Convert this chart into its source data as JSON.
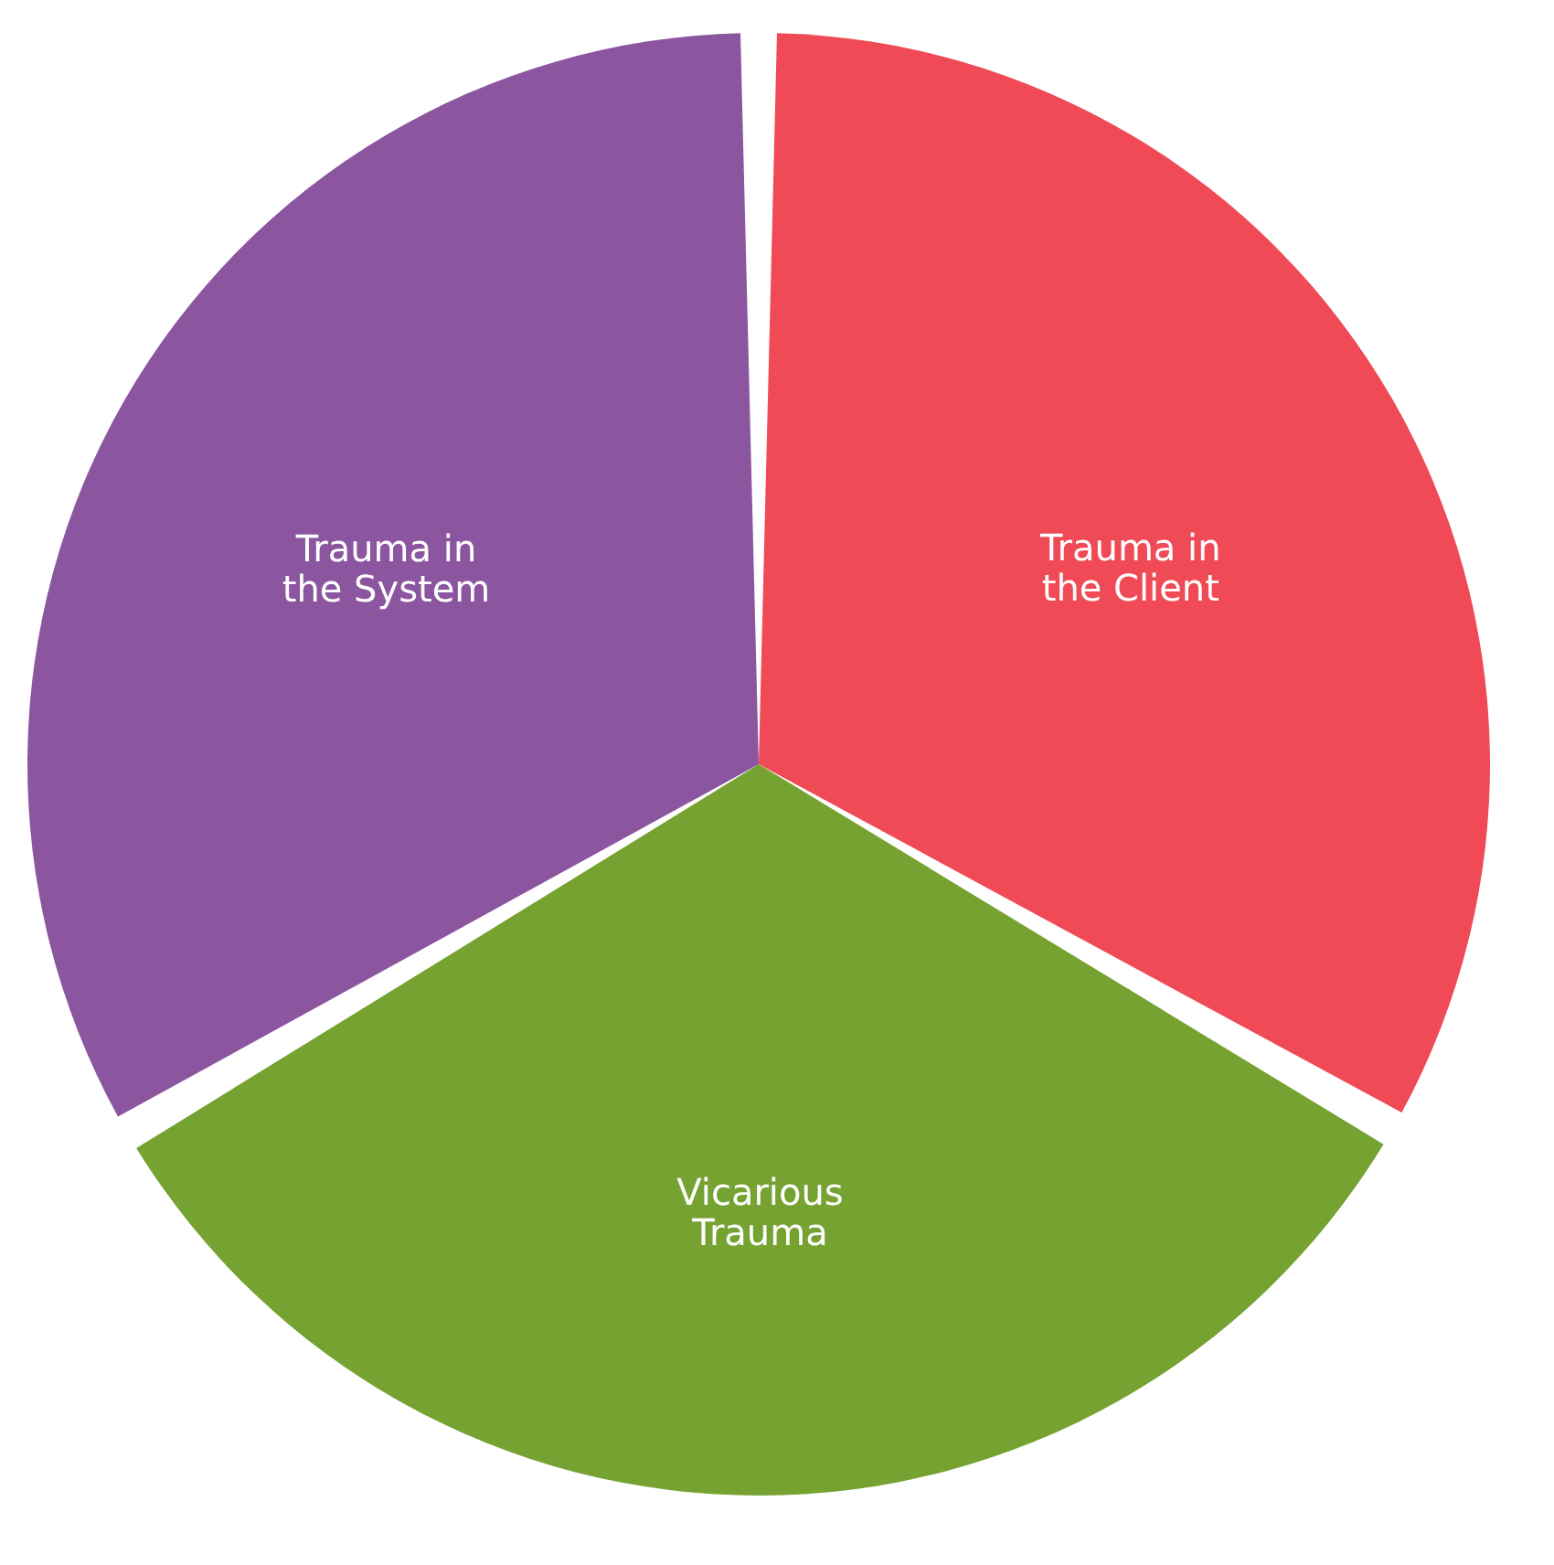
{
  "chart_data": {
    "type": "pie",
    "categories": [
      "Trauma in\nthe Client",
      "Vicarious\nTrauma",
      "Trauma in\nthe System"
    ],
    "values": [
      33.3,
      33.3,
      33.4
    ],
    "colors": [
      "#ef4a55",
      "#76a232",
      "#8b55a0"
    ],
    "legend": false
  }
}
